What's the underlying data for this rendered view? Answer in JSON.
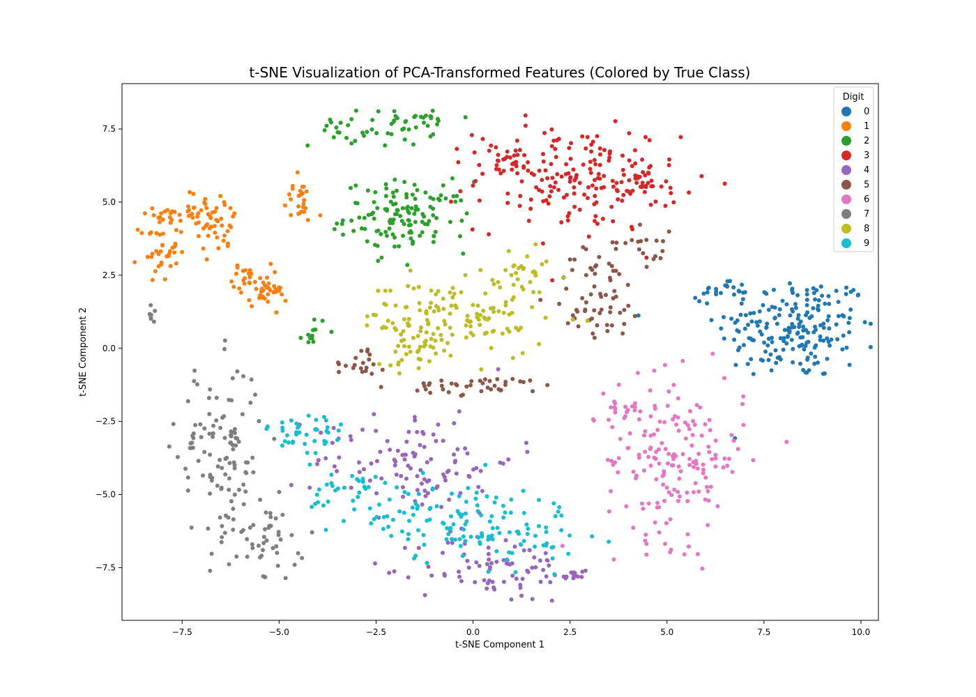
{
  "chart_data": {
    "type": "scatter",
    "title": "t-SNE Visualization of PCA-Transformed Features (Colored by True Class)",
    "xlabel": "t-SNE Component 1",
    "ylabel": "t-SNE Component 2",
    "xlim": [
      -9.05,
      10.45
    ],
    "ylim": [
      -9.3,
      9.05
    ],
    "xticks": [
      -7.5,
      -5.0,
      -2.5,
      0.0,
      2.5,
      5.0,
      7.5,
      10.0
    ],
    "xtick_labels": [
      "−7.5",
      "−5.0",
      "−2.5",
      "0.0",
      "2.5",
      "5.0",
      "7.5",
      "10.0"
    ],
    "yticks": [
      -7.5,
      -5.0,
      -2.5,
      0.0,
      2.5,
      5.0,
      7.5
    ],
    "ytick_labels": [
      "−7.5",
      "−5.0",
      "−2.5",
      "0.0",
      "2.5",
      "5.0",
      "7.5"
    ],
    "grid": false,
    "legend": {
      "title": "Digit",
      "placement": "top-right"
    },
    "series": [
      {
        "name": "0",
        "color": "#1f77b4",
        "clusters": [
          {
            "cx": 8.3,
            "cy": 0.7,
            "sx": 1.0,
            "sy": 0.9,
            "n": 200
          },
          {
            "cx": 6.5,
            "cy": 2.0,
            "sx": 0.3,
            "sy": 0.2,
            "n": 20
          }
        ]
      },
      {
        "name": "1",
        "color": "#ff7f0e",
        "clusters": [
          {
            "cx": -8.1,
            "cy": 3.4,
            "sx": 0.25,
            "sy": 0.55,
            "n": 40
          },
          {
            "cx": -7.2,
            "cy": 4.6,
            "sx": 0.5,
            "sy": 0.4,
            "n": 40
          },
          {
            "cx": -6.6,
            "cy": 4.2,
            "sx": 0.35,
            "sy": 0.5,
            "n": 30
          },
          {
            "cx": -5.7,
            "cy": 2.4,
            "sx": 0.25,
            "sy": 0.25,
            "n": 30
          },
          {
            "cx": -5.3,
            "cy": 1.8,
            "sx": 0.25,
            "sy": 0.2,
            "n": 25
          },
          {
            "cx": -4.5,
            "cy": 5.0,
            "sx": 0.2,
            "sy": 0.4,
            "n": 25
          }
        ]
      },
      {
        "name": "2",
        "color": "#2ca02c",
        "clusters": [
          {
            "cx": -1.7,
            "cy": 4.5,
            "sx": 0.8,
            "sy": 0.6,
            "n": 130
          },
          {
            "cx": -2.6,
            "cy": 7.5,
            "sx": 0.8,
            "sy": 0.3,
            "n": 45
          },
          {
            "cx": -1.2,
            "cy": 7.9,
            "sx": 0.2,
            "sy": 0.15,
            "n": 12
          },
          {
            "cx": -4.1,
            "cy": 0.6,
            "sx": 0.15,
            "sy": 0.25,
            "n": 12
          }
        ]
      },
      {
        "name": "3",
        "color": "#d62728",
        "clusters": [
          {
            "cx": 2.7,
            "cy": 5.8,
            "sx": 1.3,
            "sy": 0.9,
            "n": 170
          },
          {
            "cx": 4.2,
            "cy": 5.5,
            "sx": 0.4,
            "sy": 0.3,
            "n": 30
          },
          {
            "cx": 0.8,
            "cy": 6.4,
            "sx": 0.3,
            "sy": 0.3,
            "n": 25
          }
        ]
      },
      {
        "name": "4",
        "color": "#9467bd",
        "clusters": [
          {
            "cx": -1.5,
            "cy": -3.8,
            "sx": 1.3,
            "sy": 0.9,
            "n": 110
          },
          {
            "cx": 0.6,
            "cy": -7.5,
            "sx": 1.0,
            "sy": 0.6,
            "n": 80
          },
          {
            "cx": 2.5,
            "cy": -7.8,
            "sx": 0.3,
            "sy": 0.1,
            "n": 12
          }
        ]
      },
      {
        "name": "5",
        "color": "#8c564b",
        "clusters": [
          {
            "cx": 3.2,
            "cy": 1.8,
            "sx": 0.6,
            "sy": 0.8,
            "n": 60
          },
          {
            "cx": 0.3,
            "cy": -1.3,
            "sx": 1.0,
            "sy": 0.15,
            "n": 40
          },
          {
            "cx": -2.9,
            "cy": -0.4,
            "sx": 0.35,
            "sy": 0.3,
            "n": 20
          },
          {
            "cx": 4.5,
            "cy": 3.6,
            "sx": 0.4,
            "sy": 0.4,
            "n": 20
          }
        ]
      },
      {
        "name": "6",
        "color": "#e377c2",
        "clusters": [
          {
            "cx": 5.2,
            "cy": -3.8,
            "sx": 0.9,
            "sy": 1.4,
            "n": 170
          },
          {
            "cx": 3.9,
            "cy": -2.0,
            "sx": 0.4,
            "sy": 0.4,
            "n": 20
          }
        ]
      },
      {
        "name": "7",
        "color": "#7f7f7f",
        "clusters": [
          {
            "cx": -6.5,
            "cy": -3.5,
            "sx": 0.55,
            "sy": 1.5,
            "n": 110
          },
          {
            "cx": -5.3,
            "cy": -6.5,
            "sx": 0.5,
            "sy": 0.6,
            "n": 45
          },
          {
            "cx": -8.3,
            "cy": 1.2,
            "sx": 0.05,
            "sy": 0.25,
            "n": 8
          }
        ]
      },
      {
        "name": "8",
        "color": "#bcbd22",
        "clusters": [
          {
            "cx": -0.5,
            "cy": 1.0,
            "sx": 1.2,
            "sy": 0.7,
            "n": 140
          },
          {
            "cx": -1.6,
            "cy": 0.1,
            "sx": 0.3,
            "sy": 0.4,
            "n": 25
          },
          {
            "cx": 1.3,
            "cy": 2.6,
            "sx": 0.5,
            "sy": 0.4,
            "n": 25
          }
        ]
      },
      {
        "name": "9",
        "color": "#17becf",
        "clusters": [
          {
            "cx": 0.2,
            "cy": -6.0,
            "sx": 1.3,
            "sy": 0.7,
            "n": 120
          },
          {
            "cx": -4.3,
            "cy": -3.0,
            "sx": 0.5,
            "sy": 0.5,
            "n": 40
          },
          {
            "cx": -3.2,
            "cy": -4.9,
            "sx": 0.5,
            "sy": 0.5,
            "n": 30
          },
          {
            "cx": -1.7,
            "cy": -5.7,
            "sx": 0.5,
            "sy": 0.4,
            "n": 20
          }
        ]
      }
    ]
  }
}
